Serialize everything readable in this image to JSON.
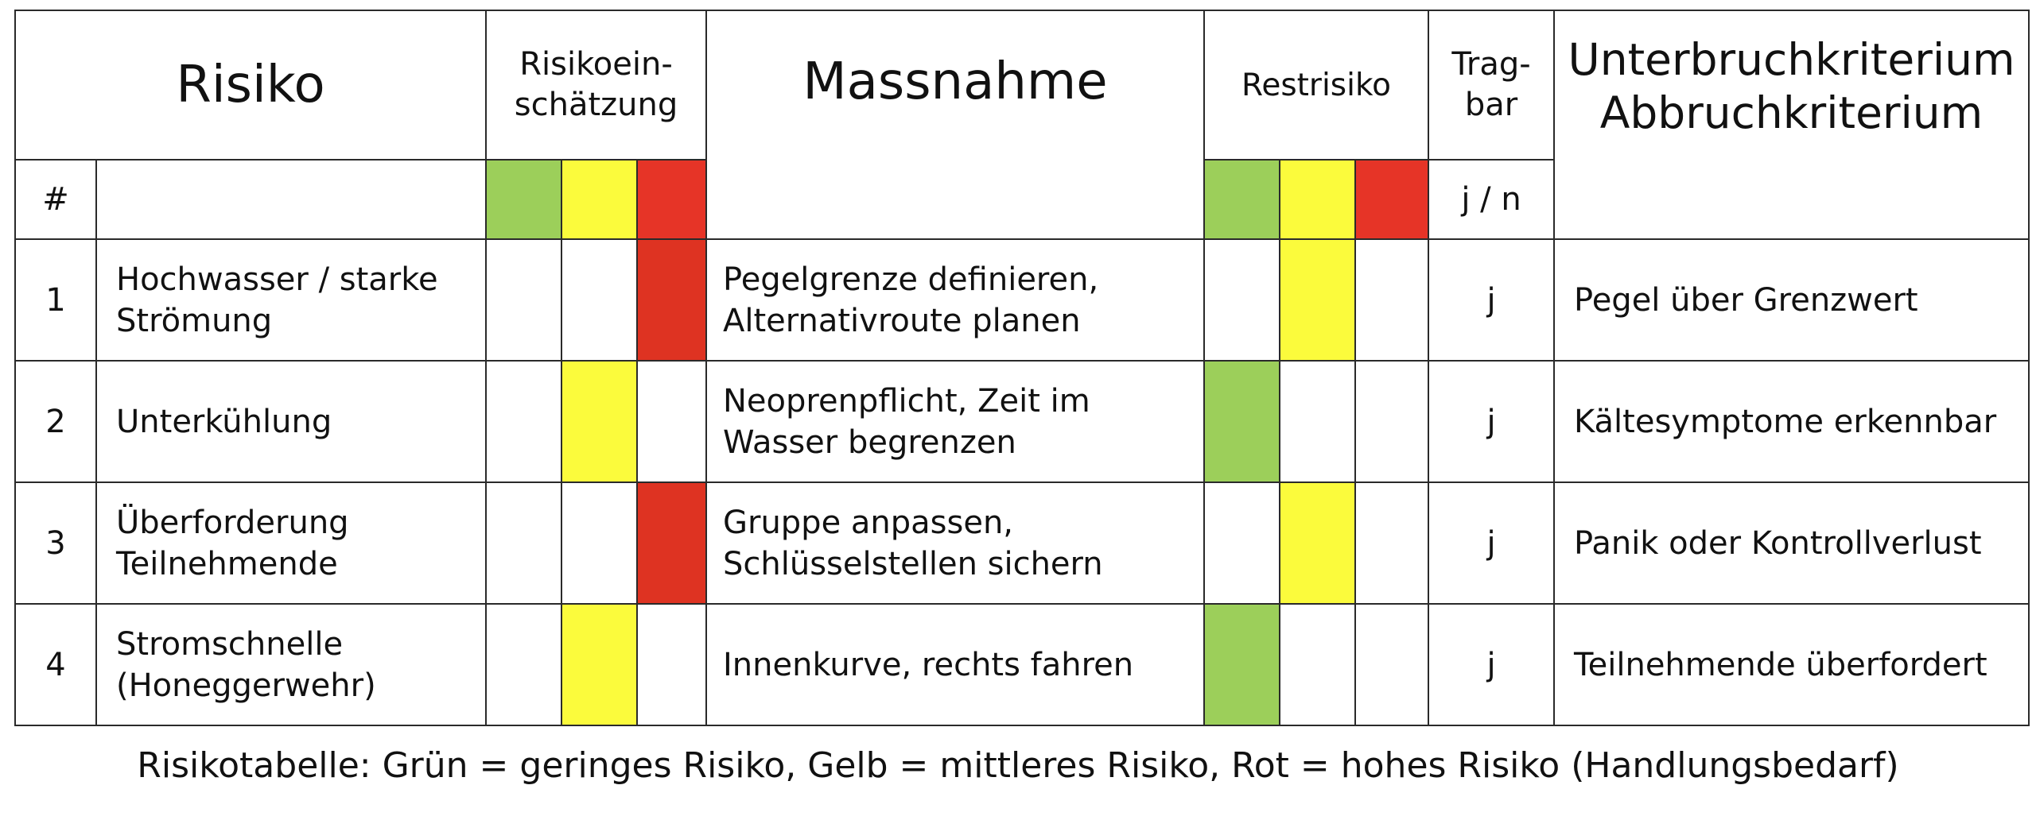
{
  "header": {
    "risiko": "Risiko",
    "einschaetzung": "Risikoein-\nschätzung",
    "massnahme": "Massnahme",
    "restrisiko": "Restrisiko",
    "tragbar": "Trag-\nbar",
    "kriterium": "Unterbruchkriterium\nAbbruchkriterium",
    "hash": "#",
    "jn": "j / n"
  },
  "colors": {
    "green": "#9ccf5a",
    "yellow": "#fbfb3c",
    "red": "#e63427"
  },
  "rows": [
    {
      "num": "1",
      "risiko": "Hochwasser / starke Strömung",
      "einschaetzung": "red",
      "massnahme": "Pegelgrenze definieren, Alternativroute planen",
      "restrisiko": "yellow",
      "tragbar": "j",
      "kriterium": "Pegel über Grenzwert"
    },
    {
      "num": "2",
      "risiko": "Unterkühlung",
      "einschaetzung": "yellow",
      "massnahme": "Neoprenpflicht, Zeit im Wasser begrenzen",
      "restrisiko": "green",
      "tragbar": "j",
      "kriterium": "Kältesymptome erkennbar"
    },
    {
      "num": "3",
      "risiko": "Überforderung Teilnehmende",
      "einschaetzung": "red",
      "massnahme": "Gruppe anpassen, Schlüsselstellen sichern",
      "restrisiko": "yellow",
      "tragbar": "j",
      "kriterium": "Panik oder Kontrollverlust"
    },
    {
      "num": "4",
      "risiko": "Stromschnelle (Honeggerwehr)",
      "einschaetzung": "yellow",
      "massnahme": "Innenkurve, rechts fahren",
      "restrisiko": "green",
      "tragbar": "j",
      "kriterium": "Teilnehmende überfordert"
    }
  ],
  "caption": "Risikotabelle: Grün = geringes Risiko, Gelb = mittleres Risiko, Rot = hohes Risiko (Handlungsbedarf)"
}
